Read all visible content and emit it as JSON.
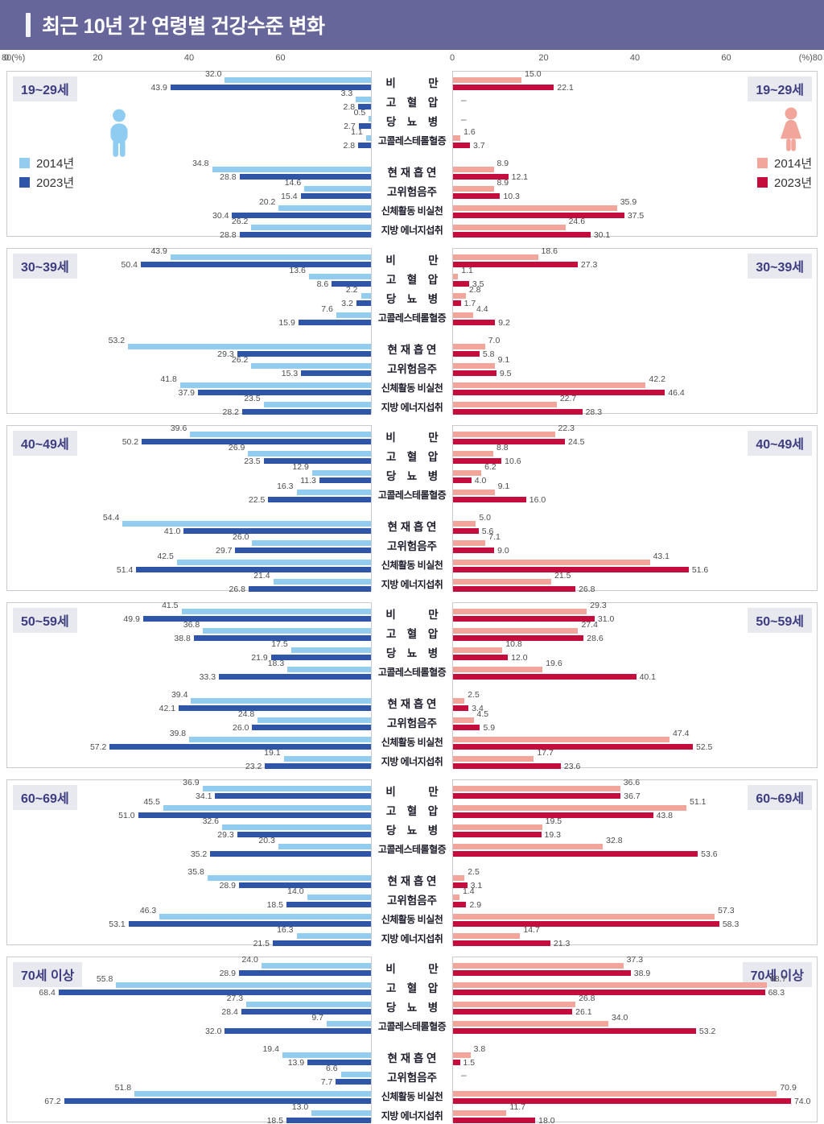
{
  "header": {
    "title": "최근 10년 간 연령별 건강수준 변화",
    "bg_color": "#66669a"
  },
  "axis": {
    "left_ticks": [
      "80(%)",
      "60",
      "40",
      "20",
      "0"
    ],
    "right_ticks": [
      "0",
      "20",
      "40",
      "60",
      "(%)80"
    ]
  },
  "legend": {
    "items": [
      {
        "label": "2014년"
      },
      {
        "label": "2023년"
      }
    ]
  },
  "colors": {
    "male_2014": "#92cdf0",
    "male_2023": "#2e55a7",
    "female_2014": "#f2a69b",
    "female_2023": "#c40d3c",
    "chip_bg": "#e8e8ef",
    "chip_text": "#3c3c80"
  },
  "icons": {
    "male": "male-person-icon",
    "female": "female-person-icon"
  },
  "chart_data": {
    "type": "bar",
    "orientation": "horizontal-butterfly",
    "unit": "%",
    "axis_max": 80,
    "no_data_symbol": "–",
    "categories": [
      "비만",
      "고혈압",
      "당뇨병",
      "고콜레스테롤혈증",
      "현재흡연",
      "고위험음주",
      "신체활동 비실천",
      "지방 에너지섭취"
    ],
    "category_display": [
      "비　　　만",
      "고　혈　압",
      "당　뇨　병",
      "고콜레스테롤혈증",
      "현 재 흡 연",
      "고위험음주",
      "신체활동 비실천",
      "지방 에너지섭취"
    ],
    "series_years": [
      "2014년",
      "2023년"
    ],
    "panels": [
      {
        "age": "19~29세",
        "male": {
          "y2014": [
            32.0,
            3.3,
            0.5,
            1.1,
            34.8,
            14.6,
            20.2,
            26.2
          ],
          "y2023": [
            43.9,
            2.8,
            2.7,
            2.8,
            28.8,
            15.4,
            30.4,
            28.8
          ]
        },
        "female": {
          "y2014": [
            15.0,
            null,
            null,
            1.6,
            8.9,
            8.9,
            35.9,
            24.6
          ],
          "y2023": [
            22.1,
            null,
            null,
            3.7,
            12.1,
            10.3,
            37.5,
            30.1
          ]
        }
      },
      {
        "age": "30~39세",
        "male": {
          "y2014": [
            43.9,
            13.6,
            2.2,
            7.6,
            53.2,
            26.2,
            41.8,
            23.5
          ],
          "y2023": [
            50.4,
            8.6,
            3.2,
            15.9,
            29.3,
            15.3,
            37.9,
            28.2
          ]
        },
        "female": {
          "y2014": [
            18.6,
            1.1,
            2.8,
            4.4,
            7.0,
            9.1,
            42.2,
            22.7
          ],
          "y2023": [
            27.3,
            3.5,
            1.7,
            9.2,
            5.8,
            9.5,
            46.4,
            28.3
          ]
        }
      },
      {
        "age": "40~49세",
        "male": {
          "y2014": [
            39.6,
            26.9,
            12.9,
            16.3,
            54.4,
            26.0,
            42.5,
            21.4
          ],
          "y2023": [
            50.2,
            23.5,
            11.3,
            22.5,
            41.0,
            29.7,
            51.4,
            26.8
          ]
        },
        "female": {
          "y2014": [
            22.3,
            8.8,
            6.2,
            9.1,
            5.0,
            7.1,
            43.1,
            21.5
          ],
          "y2023": [
            24.5,
            10.6,
            4.0,
            16.0,
            5.6,
            9.0,
            51.6,
            26.8
          ]
        }
      },
      {
        "age": "50~59세",
        "male": {
          "y2014": [
            41.5,
            36.8,
            17.5,
            18.3,
            39.4,
            24.8,
            39.8,
            19.1
          ],
          "y2023": [
            49.9,
            38.8,
            21.9,
            33.3,
            42.1,
            26.0,
            57.2,
            23.2
          ]
        },
        "female": {
          "y2014": [
            29.3,
            27.4,
            10.8,
            19.6,
            2.5,
            4.5,
            47.4,
            17.7
          ],
          "y2023": [
            31.0,
            28.6,
            12.0,
            40.1,
            3.4,
            5.9,
            52.5,
            23.6
          ]
        }
      },
      {
        "age": "60~69세",
        "male": {
          "y2014": [
            36.9,
            45.5,
            32.6,
            20.3,
            35.8,
            14.0,
            46.3,
            16.3
          ],
          "y2023": [
            34.1,
            51.0,
            29.3,
            35.2,
            28.9,
            18.5,
            53.1,
            21.5
          ]
        },
        "female": {
          "y2014": [
            36.6,
            51.1,
            19.5,
            32.8,
            2.5,
            1.4,
            57.3,
            14.7
          ],
          "y2023": [
            36.7,
            43.8,
            19.3,
            53.6,
            3.1,
            2.9,
            58.3,
            21.3
          ]
        }
      },
      {
        "age": "70세 이상",
        "male": {
          "y2014": [
            24.0,
            55.8,
            27.3,
            9.7,
            19.4,
            6.6,
            51.8,
            13.0
          ],
          "y2023": [
            28.9,
            68.4,
            28.4,
            32.0,
            13.9,
            7.7,
            67.2,
            18.5
          ]
        },
        "female": {
          "y2014": [
            37.3,
            68.7,
            26.8,
            34.0,
            3.8,
            null,
            70.9,
            11.7
          ],
          "y2023": [
            38.9,
            68.3,
            26.1,
            53.2,
            1.5,
            null,
            74.0,
            18.0
          ]
        }
      }
    ]
  }
}
